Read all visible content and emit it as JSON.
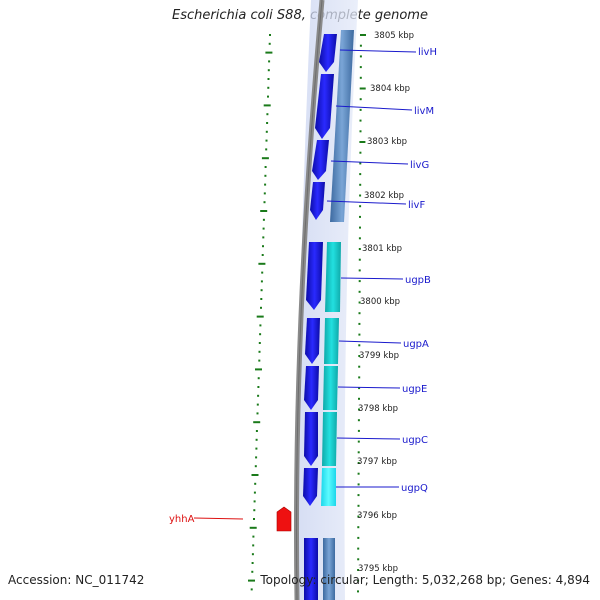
{
  "title": "Escherichia coli S88, complete genome",
  "accession_text": "Accession: NC_011742",
  "summary_text": "Topology: circular; Length: 5,032,268 bp; Genes: 4,894",
  "colors": {
    "backbone": "#7a7a7a",
    "gene_blue": "#1a1aee",
    "gene_cyan": "#18d6d6",
    "gene_light_cyan": "#2ef0f0",
    "gene_steel": "#4f7fb5",
    "gene_red": "#ee1111",
    "tick_green": "#1a7a1a",
    "label_blue": "#1a1acc",
    "label_red": "#dd1111"
  },
  "scale_labels": [
    "3805 kbp",
    "3804 kbp",
    "3803 kbp",
    "3802 kbp",
    "3801 kbp",
    "3800 kbp",
    "3799 kbp",
    "3798 kbp",
    "3797 kbp",
    "3796 kbp",
    "3795 kbp"
  ],
  "gene_labels": [
    "livH",
    "livM",
    "livG",
    "livF",
    "ugpB",
    "ugpA",
    "ugpE",
    "ugpC",
    "ugpQ"
  ],
  "left_gene_label": "yhhA"
}
